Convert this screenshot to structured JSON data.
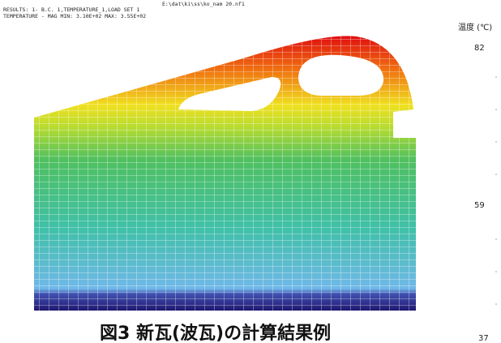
{
  "header": {
    "file": "E:\\dat\\ki\\ss\\ko_nam 20.nf1",
    "line1": "RESULTS: 1- B.C. 1,TEMPERATURE_1,LOAD SET 1",
    "line2": "TEMPERATURE - MAG MIN: 3.10E+02 MAX: 3.55E+02"
  },
  "legend": {
    "title": "温度 (℃)",
    "labels": [
      82,
      59,
      37
    ]
  },
  "caption": "図3 新瓦(波瓦)の計算結果例"
}
